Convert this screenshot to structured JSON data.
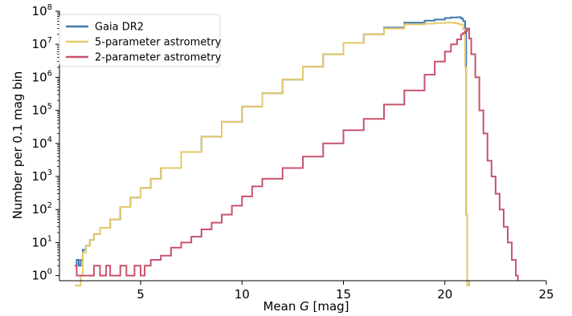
{
  "chart_data": {
    "type": "line",
    "subtype": "step-histogram",
    "xlabel_prefix": "Mean ",
    "xlabel_var": "G",
    "xlabel_suffix": " [mag]",
    "ylabel": "Number per 0.1 mag bin",
    "xlim": [
      1.0,
      25.0
    ],
    "ylim": [
      0.7,
      100000000
    ],
    "yscale": "log",
    "grid": false,
    "legend_position": "top-left",
    "x_ticks": [
      {
        "value": 5,
        "label": "5"
      },
      {
        "value": 10,
        "label": "10"
      },
      {
        "value": 15,
        "label": "15"
      },
      {
        "value": 20,
        "label": "20"
      },
      {
        "value": 25,
        "label": "25"
      }
    ],
    "y_ticks": [
      {
        "value": 1,
        "base": "10",
        "exp": "0"
      },
      {
        "value": 10,
        "base": "10",
        "exp": "1"
      },
      {
        "value": 100,
        "base": "10",
        "exp": "2"
      },
      {
        "value": 1000,
        "base": "10",
        "exp": "3"
      },
      {
        "value": 10000,
        "base": "10",
        "exp": "4"
      },
      {
        "value": 100000,
        "base": "10",
        "exp": "5"
      },
      {
        "value": 1000000,
        "base": "10",
        "exp": "6"
      },
      {
        "value": 10000000,
        "base": "10",
        "exp": "7"
      },
      {
        "value": 100000000,
        "base": "10",
        "exp": "8"
      }
    ],
    "series": [
      {
        "name": "Gaia DR2",
        "color": "#3f78ad",
        "points": [
          [
            1.75,
            2
          ],
          [
            1.85,
            3
          ],
          [
            1.95,
            2
          ],
          [
            2.05,
            3
          ],
          [
            2.15,
            6
          ],
          [
            2.3,
            8
          ],
          [
            2.5,
            12
          ],
          [
            2.7,
            18
          ],
          [
            3.0,
            28
          ],
          [
            3.5,
            50
          ],
          [
            4.0,
            120
          ],
          [
            4.5,
            230
          ],
          [
            5.0,
            450
          ],
          [
            5.5,
            850
          ],
          [
            6.0,
            1800
          ],
          [
            7.0,
            5500
          ],
          [
            8.0,
            16000
          ],
          [
            9.0,
            45000
          ],
          [
            10.0,
            130000
          ],
          [
            11.0,
            330000
          ],
          [
            12.0,
            850000
          ],
          [
            13.0,
            2100000
          ],
          [
            14.0,
            5000000
          ],
          [
            15.0,
            11000000
          ],
          [
            16.0,
            20000000
          ],
          [
            17.0,
            32000000
          ],
          [
            18.0,
            45000000
          ],
          [
            19.0,
            52000000
          ],
          [
            19.5,
            56000000
          ],
          [
            20.0,
            62000000
          ],
          [
            20.3,
            65000000
          ],
          [
            20.6,
            66000000
          ],
          [
            20.8,
            60000000
          ],
          [
            20.9,
            50000000
          ],
          [
            21.0,
            30000000
          ],
          [
            21.05,
            70
          ],
          [
            21.1,
            0.5
          ]
        ]
      },
      {
        "name": "5-parameter astrometry",
        "color": "#e6c96a",
        "points": [
          [
            1.75,
            0.5
          ],
          [
            2.05,
            1
          ],
          [
            2.15,
            5
          ],
          [
            2.3,
            8
          ],
          [
            2.5,
            12
          ],
          [
            2.7,
            18
          ],
          [
            3.0,
            28
          ],
          [
            3.5,
            50
          ],
          [
            4.0,
            120
          ],
          [
            4.5,
            230
          ],
          [
            5.0,
            450
          ],
          [
            5.5,
            850
          ],
          [
            6.0,
            1800
          ],
          [
            7.0,
            5500
          ],
          [
            8.0,
            16000
          ],
          [
            9.0,
            45000
          ],
          [
            10.0,
            130000
          ],
          [
            11.0,
            330000
          ],
          [
            12.0,
            850000
          ],
          [
            13.0,
            2100000
          ],
          [
            14.0,
            5000000
          ],
          [
            15.0,
            11000000
          ],
          [
            16.0,
            20000000
          ],
          [
            17.0,
            30000000
          ],
          [
            18.0,
            40000000
          ],
          [
            19.0,
            42000000
          ],
          [
            19.5,
            44000000
          ],
          [
            20.0,
            45000000
          ],
          [
            20.3,
            45000000
          ],
          [
            20.5,
            43000000
          ],
          [
            20.7,
            40000000
          ],
          [
            20.9,
            28000000
          ],
          [
            21.0,
            2000000
          ],
          [
            21.05,
            70
          ],
          [
            21.1,
            0.5
          ]
        ]
      },
      {
        "name": "2-parameter astrometry",
        "color": "#c8536e",
        "points": [
          [
            1.75,
            2
          ],
          [
            1.85,
            1
          ],
          [
            2.5,
            1
          ],
          [
            2.7,
            2
          ],
          [
            3.0,
            1
          ],
          [
            3.3,
            2
          ],
          [
            3.5,
            1
          ],
          [
            4.0,
            2
          ],
          [
            4.3,
            1
          ],
          [
            4.7,
            2
          ],
          [
            5.0,
            1
          ],
          [
            5.2,
            2
          ],
          [
            5.5,
            3
          ],
          [
            6.0,
            4
          ],
          [
            6.5,
            7
          ],
          [
            7.0,
            10
          ],
          [
            7.5,
            15
          ],
          [
            8.0,
            25
          ],
          [
            8.5,
            40
          ],
          [
            9.0,
            70
          ],
          [
            9.5,
            130
          ],
          [
            10.0,
            250
          ],
          [
            10.5,
            500
          ],
          [
            11.0,
            850
          ],
          [
            12.0,
            1800
          ],
          [
            13.0,
            4000
          ],
          [
            14.0,
            10000
          ],
          [
            15.0,
            25000
          ],
          [
            16.0,
            55000
          ],
          [
            17.0,
            150000
          ],
          [
            18.0,
            400000
          ],
          [
            19.0,
            1200000
          ],
          [
            19.5,
            3000000
          ],
          [
            20.0,
            6000000
          ],
          [
            20.3,
            10000000
          ],
          [
            20.6,
            14000000
          ],
          [
            20.8,
            20000000
          ],
          [
            20.9,
            22000000
          ],
          [
            21.0,
            25000000
          ],
          [
            21.1,
            30000000
          ],
          [
            21.2,
            15000000
          ],
          [
            21.3,
            5000000
          ],
          [
            21.5,
            1000000
          ],
          [
            21.7,
            100000
          ],
          [
            21.9,
            20000
          ],
          [
            22.1,
            3000
          ],
          [
            22.3,
            1000
          ],
          [
            22.5,
            300
          ],
          [
            22.7,
            100
          ],
          [
            22.9,
            30
          ],
          [
            23.1,
            10
          ],
          [
            23.3,
            3
          ],
          [
            23.5,
            1
          ]
        ]
      }
    ]
  }
}
